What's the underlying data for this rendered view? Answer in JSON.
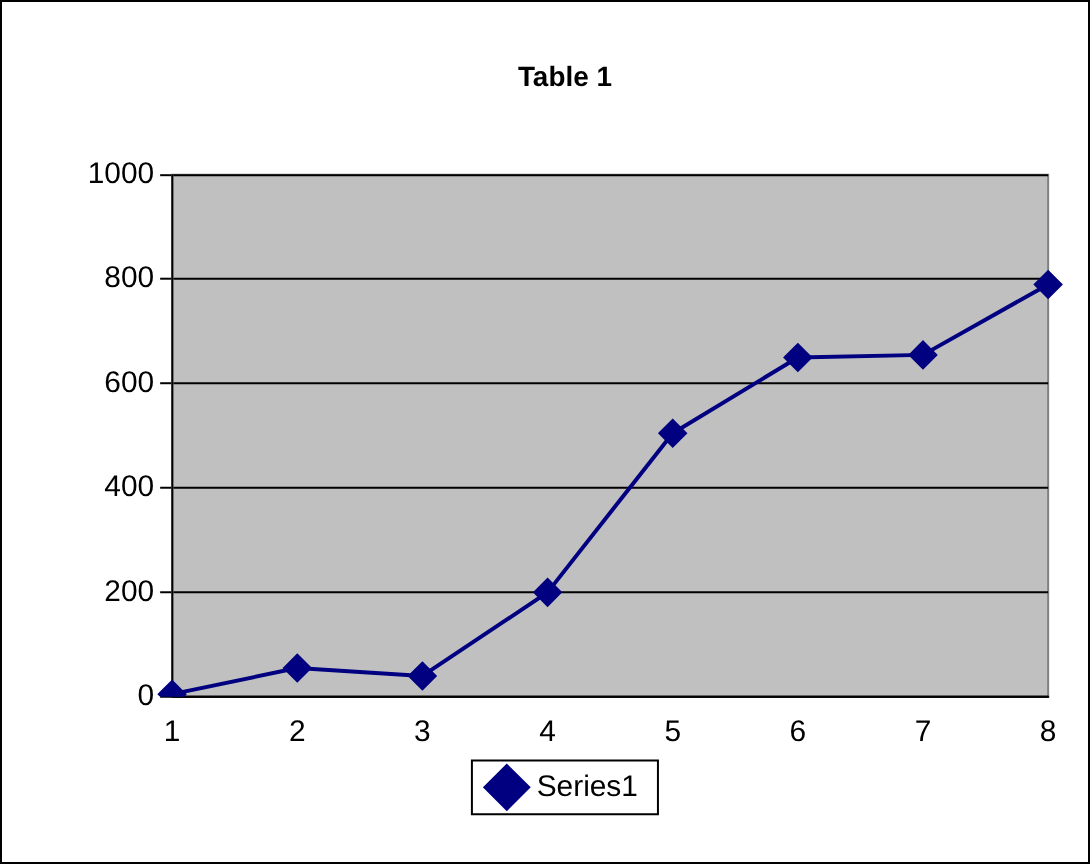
{
  "chart_data": {
    "type": "line",
    "title": "Table 1",
    "categories": [
      "1",
      "2",
      "3",
      "4",
      "5",
      "6",
      "7",
      "8"
    ],
    "series": [
      {
        "name": "Series1",
        "color": "#000080",
        "values": [
          5,
          55,
          40,
          200,
          505,
          650,
          655,
          790
        ]
      }
    ],
    "ylim": [
      0,
      1000
    ],
    "yticks": [
      0,
      200,
      400,
      600,
      800,
      1000
    ],
    "grid": "y",
    "legend": "bottom",
    "marker": "diamond",
    "line_style": "solid"
  }
}
